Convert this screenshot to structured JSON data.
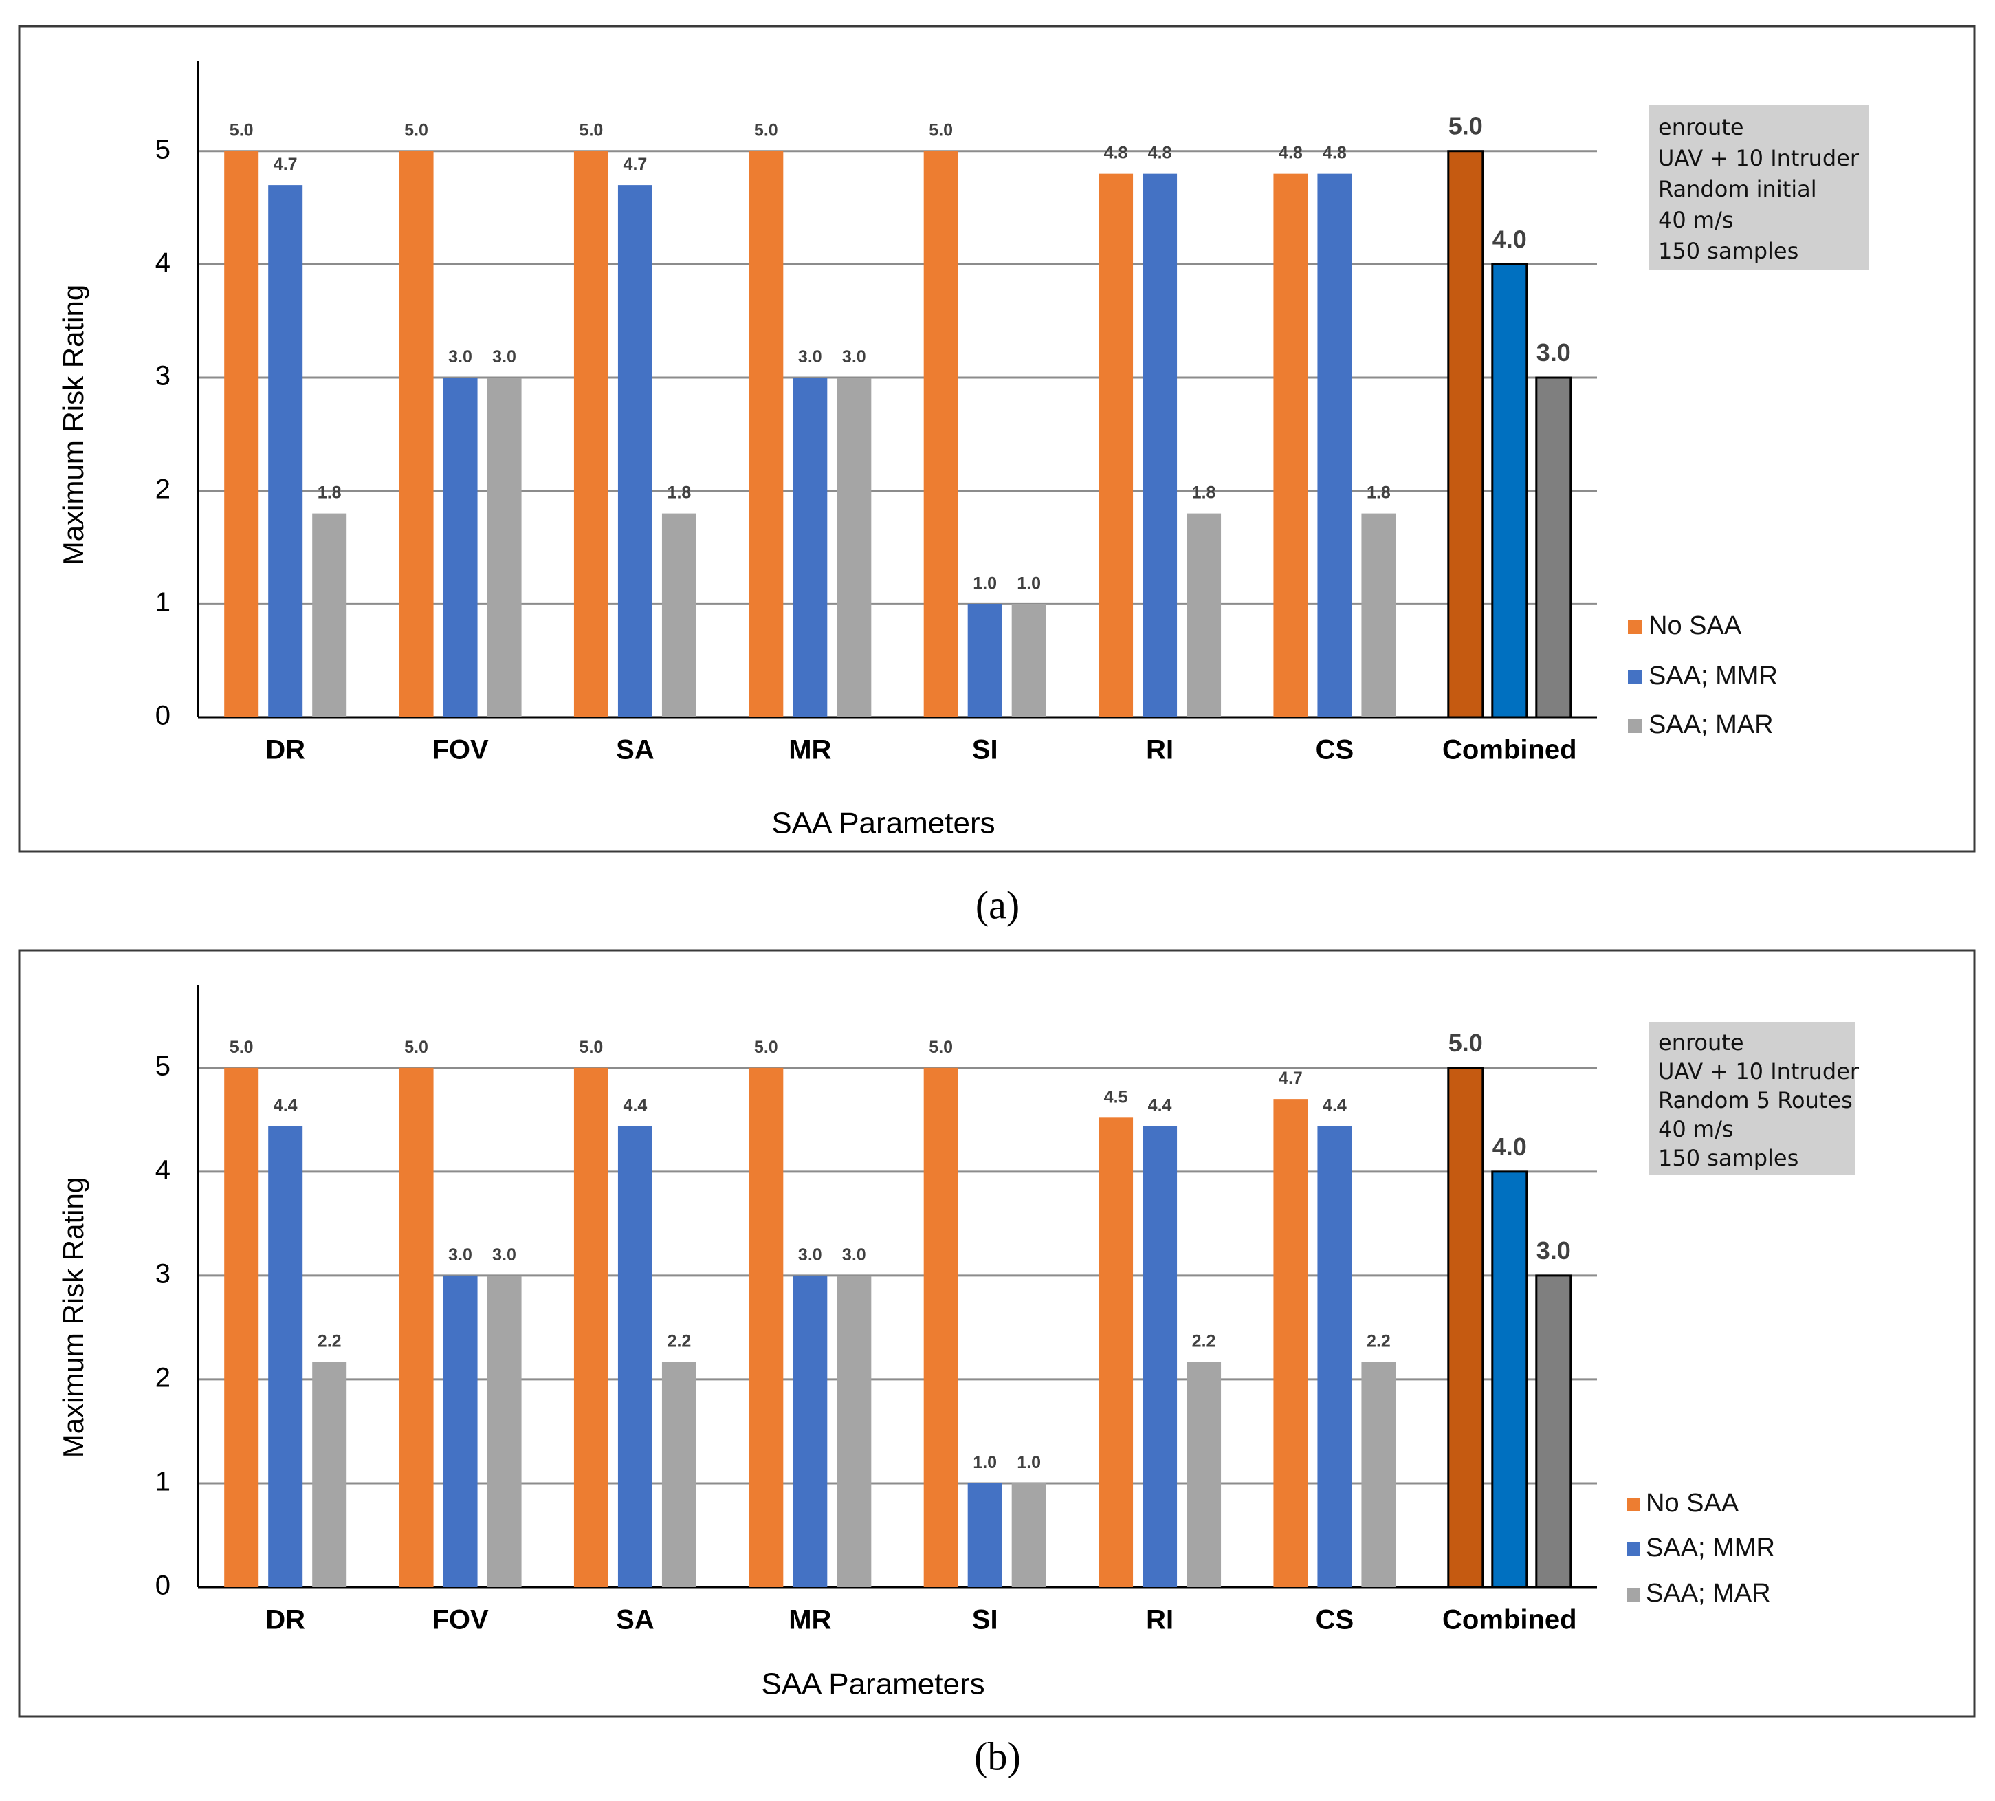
{
  "chart_data": [
    {
      "type": "bar",
      "panel": "(a)",
      "categories": [
        "DR",
        "FOV",
        "SA",
        "MR",
        "SI",
        "RI",
        "CS",
        "Combined"
      ],
      "series": [
        {
          "name": "No SAA",
          "values": [
            5.0,
            5.0,
            5.0,
            5.0,
            5.0,
            4.8,
            4.8,
            5.0
          ]
        },
        {
          "name": "SAA; MMR",
          "values": [
            4.7,
            3.0,
            4.7,
            3.0,
            1.0,
            4.8,
            4.8,
            4.0
          ]
        },
        {
          "name": "SAA; MAR",
          "values": [
            1.8,
            3.0,
            1.8,
            3.0,
            1.0,
            1.8,
            1.8,
            3.0
          ]
        }
      ],
      "labels": [
        [
          "5.0",
          "5.0",
          "5.0",
          "5.0",
          "5.0",
          "4.8",
          "4.8",
          "5.0"
        ],
        [
          "4.7",
          "3.0",
          "4.7",
          "3.0",
          "1.0",
          "4.8",
          "4.8",
          "4.0"
        ],
        [
          "1.8",
          "3.0",
          "1.8",
          "3.0",
          "1.0",
          "1.8",
          "1.8",
          "3.0"
        ]
      ],
      "xlabel": "SAA Parameters",
      "ylabel": "Maximum Risk Rating",
      "ylim": [
        0,
        5.8
      ],
      "yticks": [
        0,
        1,
        2,
        3,
        4,
        5
      ],
      "info": [
        "enroute",
        "UAV + 10 Intruder",
        "Random initial",
        "40 m/s",
        "150 samples"
      ],
      "legend_position": "right"
    },
    {
      "type": "bar",
      "panel": "(b)",
      "categories": [
        "DR",
        "FOV",
        "SA",
        "MR",
        "SI",
        "RI",
        "CS",
        "Combined"
      ],
      "series": [
        {
          "name": "No SAA",
          "values": [
            5.0,
            5.0,
            5.0,
            5.0,
            5.0,
            4.52,
            4.7,
            5.0
          ]
        },
        {
          "name": "SAA; MMR",
          "values": [
            4.44,
            3.0,
            4.44,
            3.0,
            1.0,
            4.44,
            4.44,
            4.0
          ]
        },
        {
          "name": "SAA; MAR",
          "values": [
            2.17,
            3.0,
            2.17,
            3.0,
            1.0,
            2.17,
            2.17,
            3.0
          ]
        }
      ],
      "labels": [
        [
          "5.0",
          "5.0",
          "5.0",
          "5.0",
          "5.0",
          "4.5",
          "4.7",
          "5.0"
        ],
        [
          "4.4",
          "3.0",
          "4.4",
          "3.0",
          "1.0",
          "4.4",
          "4.4",
          "4.0"
        ],
        [
          "2.2",
          "3.0",
          "2.2",
          "3.0",
          "1.0",
          "2.2",
          "2.2",
          "3.0"
        ]
      ],
      "xlabel": "SAA Parameters",
      "ylabel": "Maximum Risk Rating",
      "ylim": [
        0,
        5.8
      ],
      "yticks": [
        0,
        1,
        2,
        3,
        4,
        5
      ],
      "info": [
        "enroute",
        "UAV + 10 Intruder",
        "Random 5 Routes",
        "40 m/s",
        "150 samples"
      ],
      "legend_position": "right"
    }
  ],
  "colors": {
    "no_saa": "#ED7D31",
    "saa_mmr": "#4472C4",
    "saa_mar": "#A5A5A5",
    "combined_no_saa": "#C55A11",
    "combined_mmr": "#0070C0",
    "combined_mar": "#7F7F7F",
    "info_box": "#D0D0D0"
  },
  "captions": [
    "(a)",
    "(b)"
  ]
}
